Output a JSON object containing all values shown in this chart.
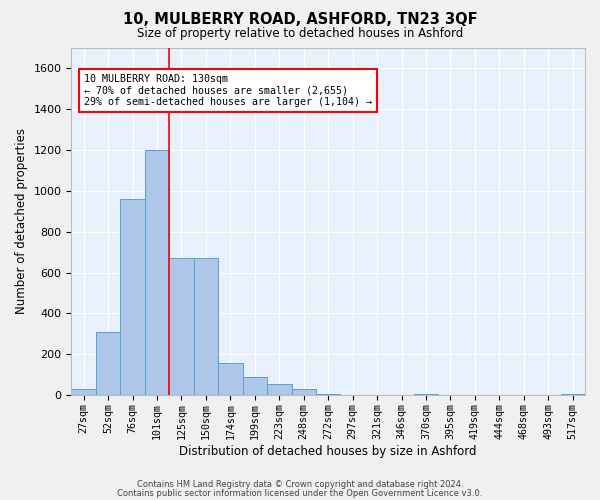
{
  "title": "10, MULBERRY ROAD, ASHFORD, TN23 3QF",
  "subtitle": "Size of property relative to detached houses in Ashford",
  "xlabel": "Distribution of detached houses by size in Ashford",
  "ylabel": "Number of detached properties",
  "categories": [
    "27sqm",
    "52sqm",
    "76sqm",
    "101sqm",
    "125sqm",
    "150sqm",
    "174sqm",
    "199sqm",
    "223sqm",
    "248sqm",
    "272sqm",
    "297sqm",
    "321sqm",
    "346sqm",
    "370sqm",
    "395sqm",
    "419sqm",
    "444sqm",
    "468sqm",
    "493sqm",
    "517sqm"
  ],
  "bar_heights": [
    30,
    310,
    960,
    1200,
    670,
    670,
    160,
    90,
    55,
    30,
    5,
    0,
    0,
    0,
    5,
    0,
    0,
    0,
    0,
    0,
    5
  ],
  "bar_color": "#aec6e8",
  "bar_edge_color": "#5a9fd4",
  "red_line_x": 3.5,
  "annotation_text_line1": "10 MULBERRY ROAD: 130sqm",
  "annotation_text_line2": "← 70% of detached houses are smaller (2,655)",
  "annotation_text_line3": "29% of semi-detached houses are larger (1,104) →",
  "ylim": [
    0,
    1700
  ],
  "yticks": [
    0,
    200,
    400,
    600,
    800,
    1000,
    1200,
    1400,
    1600
  ],
  "background_color": "#e8f0fb",
  "grid_color": "#ffffff",
  "footer_line1": "Contains HM Land Registry data © Crown copyright and database right 2024.",
  "footer_line2": "Contains public sector information licensed under the Open Government Licence v3.0."
}
